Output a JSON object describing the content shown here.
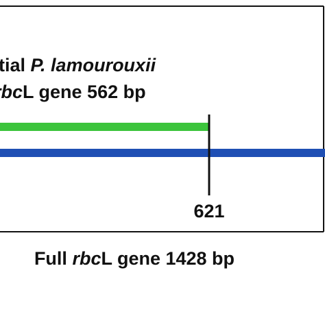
{
  "partial_label": {
    "line1": [
      "tial ",
      "P. lamourouxii"
    ],
    "line2": [
      "rbc",
      "L gene 562 bp"
    ]
  },
  "position_label": "621",
  "full_label": [
    "Full ",
    "rbc",
    "L gene 1428 bp"
  ]
}
